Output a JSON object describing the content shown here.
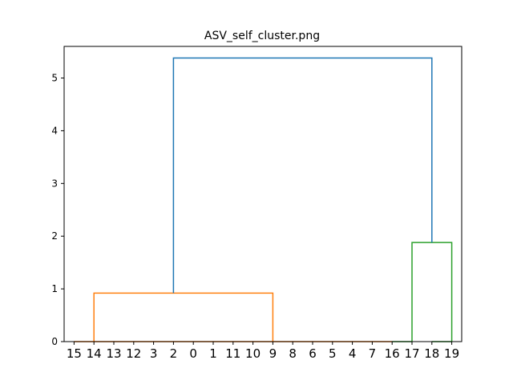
{
  "chart_data": {
    "type": "dendrogram",
    "title": "ASV_self_cluster.png",
    "xlabel": "",
    "ylabel": "",
    "ylim": [
      0,
      5.6
    ],
    "yticks": [
      0,
      1,
      2,
      3,
      4,
      5
    ],
    "leaf_order": [
      "15",
      "14",
      "13",
      "12",
      "3",
      "2",
      "0",
      "1",
      "11",
      "10",
      "9",
      "8",
      "6",
      "5",
      "4",
      "7",
      "16",
      "17",
      "18",
      "19"
    ],
    "colors": {
      "cluster1": "#ff7f0e",
      "cluster2": "#2ca02c",
      "root": "#1f77b4"
    },
    "links": [
      {
        "left": [
          0,
          1
        ],
        "right": [
          1,
          2
        ],
        "height": 0.0,
        "color": "cluster1",
        "left_h": 0.0,
        "right_h": 0.0
      },
      {
        "left": [
          2,
          3
        ],
        "right": [
          3,
          4
        ],
        "height": 0.0,
        "color": "cluster1",
        "left_h": 0.0,
        "right_h": 0.0
      },
      {
        "left": [
          4,
          5
        ],
        "right": [
          5,
          6
        ],
        "height": 0.0,
        "color": "cluster1",
        "left_h": 0.0,
        "right_h": 0.0
      },
      {
        "left": [
          6,
          7
        ],
        "right": [
          7,
          8
        ],
        "height": 0.0,
        "color": "cluster1",
        "left_h": 0.0,
        "right_h": 0.0
      },
      {
        "left": [
          8,
          9
        ],
        "right": [
          9,
          10
        ],
        "height": 0.0,
        "color": "cluster1",
        "left_h": 0.0,
        "right_h": 0.0
      },
      {
        "left": [
          10,
          11
        ],
        "right": [
          11,
          12
        ],
        "height": 0.0,
        "color": "cluster1",
        "left_h": 0.0,
        "right_h": 0.0
      },
      {
        "left": [
          12,
          13
        ],
        "right": [
          13,
          14
        ],
        "height": 0.0,
        "color": "cluster1",
        "left_h": 0.0,
        "right_h": 0.0
      },
      {
        "left": [
          14,
          15
        ],
        "right": [
          15,
          16
        ],
        "height": 0.0,
        "color": "cluster1",
        "left_h": 0.0,
        "right_h": 0.0
      },
      {
        "leftX": 1,
        "rightX": 10,
        "height": 0.92,
        "color": "cluster1",
        "left_h": 0.0,
        "right_h": 0.0
      },
      {
        "leftX": 16,
        "rightX": 17,
        "height": 0.0,
        "color": "cluster2",
        "left_h": 0.0,
        "right_h": 0.0
      },
      {
        "leftX": 18,
        "rightX": 19,
        "height": 0.0,
        "color": "cluster2",
        "left_h": 0.0,
        "right_h": 0.0
      },
      {
        "leftX": 17,
        "rightX": 19,
        "height": 1.88,
        "color": "cluster2",
        "left_h": 0.0,
        "right_h": 0.0
      },
      {
        "leftX": 5,
        "rightX": 18,
        "height": 5.38,
        "color": "root",
        "left_h": 0.92,
        "right_h": 1.88
      }
    ]
  }
}
